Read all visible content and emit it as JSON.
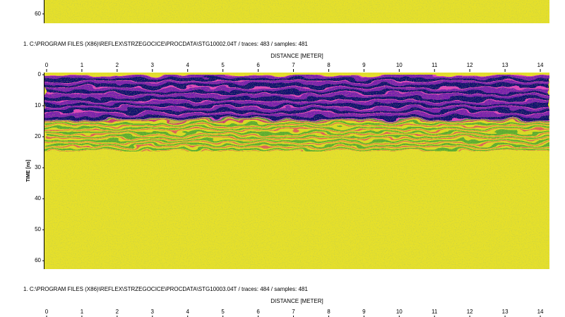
{
  "chart_data": [
    {
      "type": "radargram",
      "ylim": [
        55.5,
        63
      ],
      "yticks": [
        60
      ]
    },
    {
      "type": "radargram",
      "title": "1. C:\\PROGRAM FILES (X86)\\REFLEX\\STRZEGOCICE\\PROCDATA\\STG10002.04T / traces: 483 / samples: 481",
      "xlabel": "DISTANCE [METER]",
      "ylabel": "TIME [ns]",
      "xlim": [
        -0.06,
        14.26
      ],
      "xticks": [
        0,
        1,
        2,
        3,
        4,
        5,
        6,
        7,
        8,
        9,
        10,
        11,
        12,
        13,
        14
      ],
      "ylim": [
        -0.7,
        62.7
      ],
      "yticks": [
        0,
        10,
        20,
        30,
        40,
        50,
        60
      ]
    },
    {
      "type": "radargram",
      "title": "1. C:\\PROGRAM FILES (X86)\\REFLEX\\STRZEGOCICE\\PROCDATA\\STG10003.04T / traces: 484 / samples: 481",
      "xlabel": "DISTANCE [METER]",
      "xlim": [
        -0.06,
        14.26
      ],
      "xticks": [
        0,
        1,
        2,
        3,
        4,
        5,
        6,
        7,
        8,
        9,
        10,
        11,
        12,
        13,
        14
      ]
    }
  ]
}
